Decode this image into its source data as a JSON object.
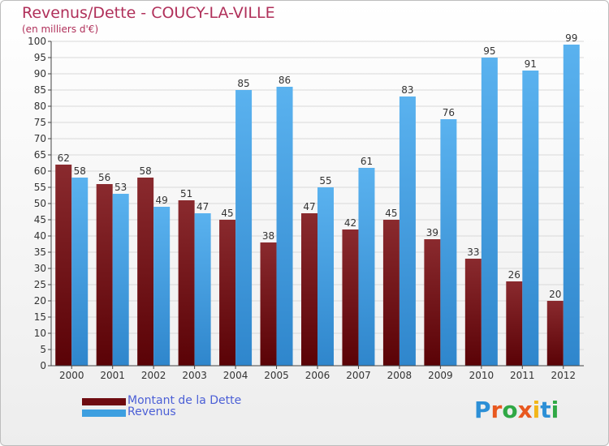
{
  "title": "Revenus/Dette - COUCY-LA-VILLE",
  "subtitle": "(en milliers d'€)",
  "logo": {
    "text": "Proxiti",
    "letter_colors": [
      "#2c8fd6",
      "#e8581f",
      "#2fa845",
      "#e8581f",
      "#f2b619",
      "#2c8fd6",
      "#2fa845"
    ]
  },
  "colors": {
    "dette": "#6e0b10",
    "revenus": "#3d9fe0",
    "grid": "#d9d9d9",
    "axis": "#444444",
    "label": "#333333"
  },
  "chart_data": {
    "type": "bar",
    "title": "Revenus/Dette - COUCY-LA-VILLE",
    "ylabel": "(en milliers d'€)",
    "xlabel": "",
    "ylim": [
      0,
      100
    ],
    "yticks": [
      0,
      5,
      10,
      15,
      20,
      25,
      30,
      35,
      40,
      45,
      50,
      55,
      60,
      65,
      70,
      75,
      80,
      85,
      90,
      95,
      100
    ],
    "categories": [
      "2000",
      "2001",
      "2002",
      "2003",
      "2004",
      "2005",
      "2006",
      "2007",
      "2008",
      "2009",
      "2010",
      "2011",
      "2012"
    ],
    "series": [
      {
        "name": "Montant de la Dette",
        "values": [
          62,
          56,
          58,
          51,
          45,
          38,
          47,
          42,
          45,
          39,
          33,
          26,
          20
        ]
      },
      {
        "name": "Revenus",
        "values": [
          58,
          53,
          49,
          47,
          85,
          86,
          55,
          61,
          83,
          76,
          95,
          91,
          99
        ]
      }
    ],
    "legend_position": "bottom-left"
  }
}
